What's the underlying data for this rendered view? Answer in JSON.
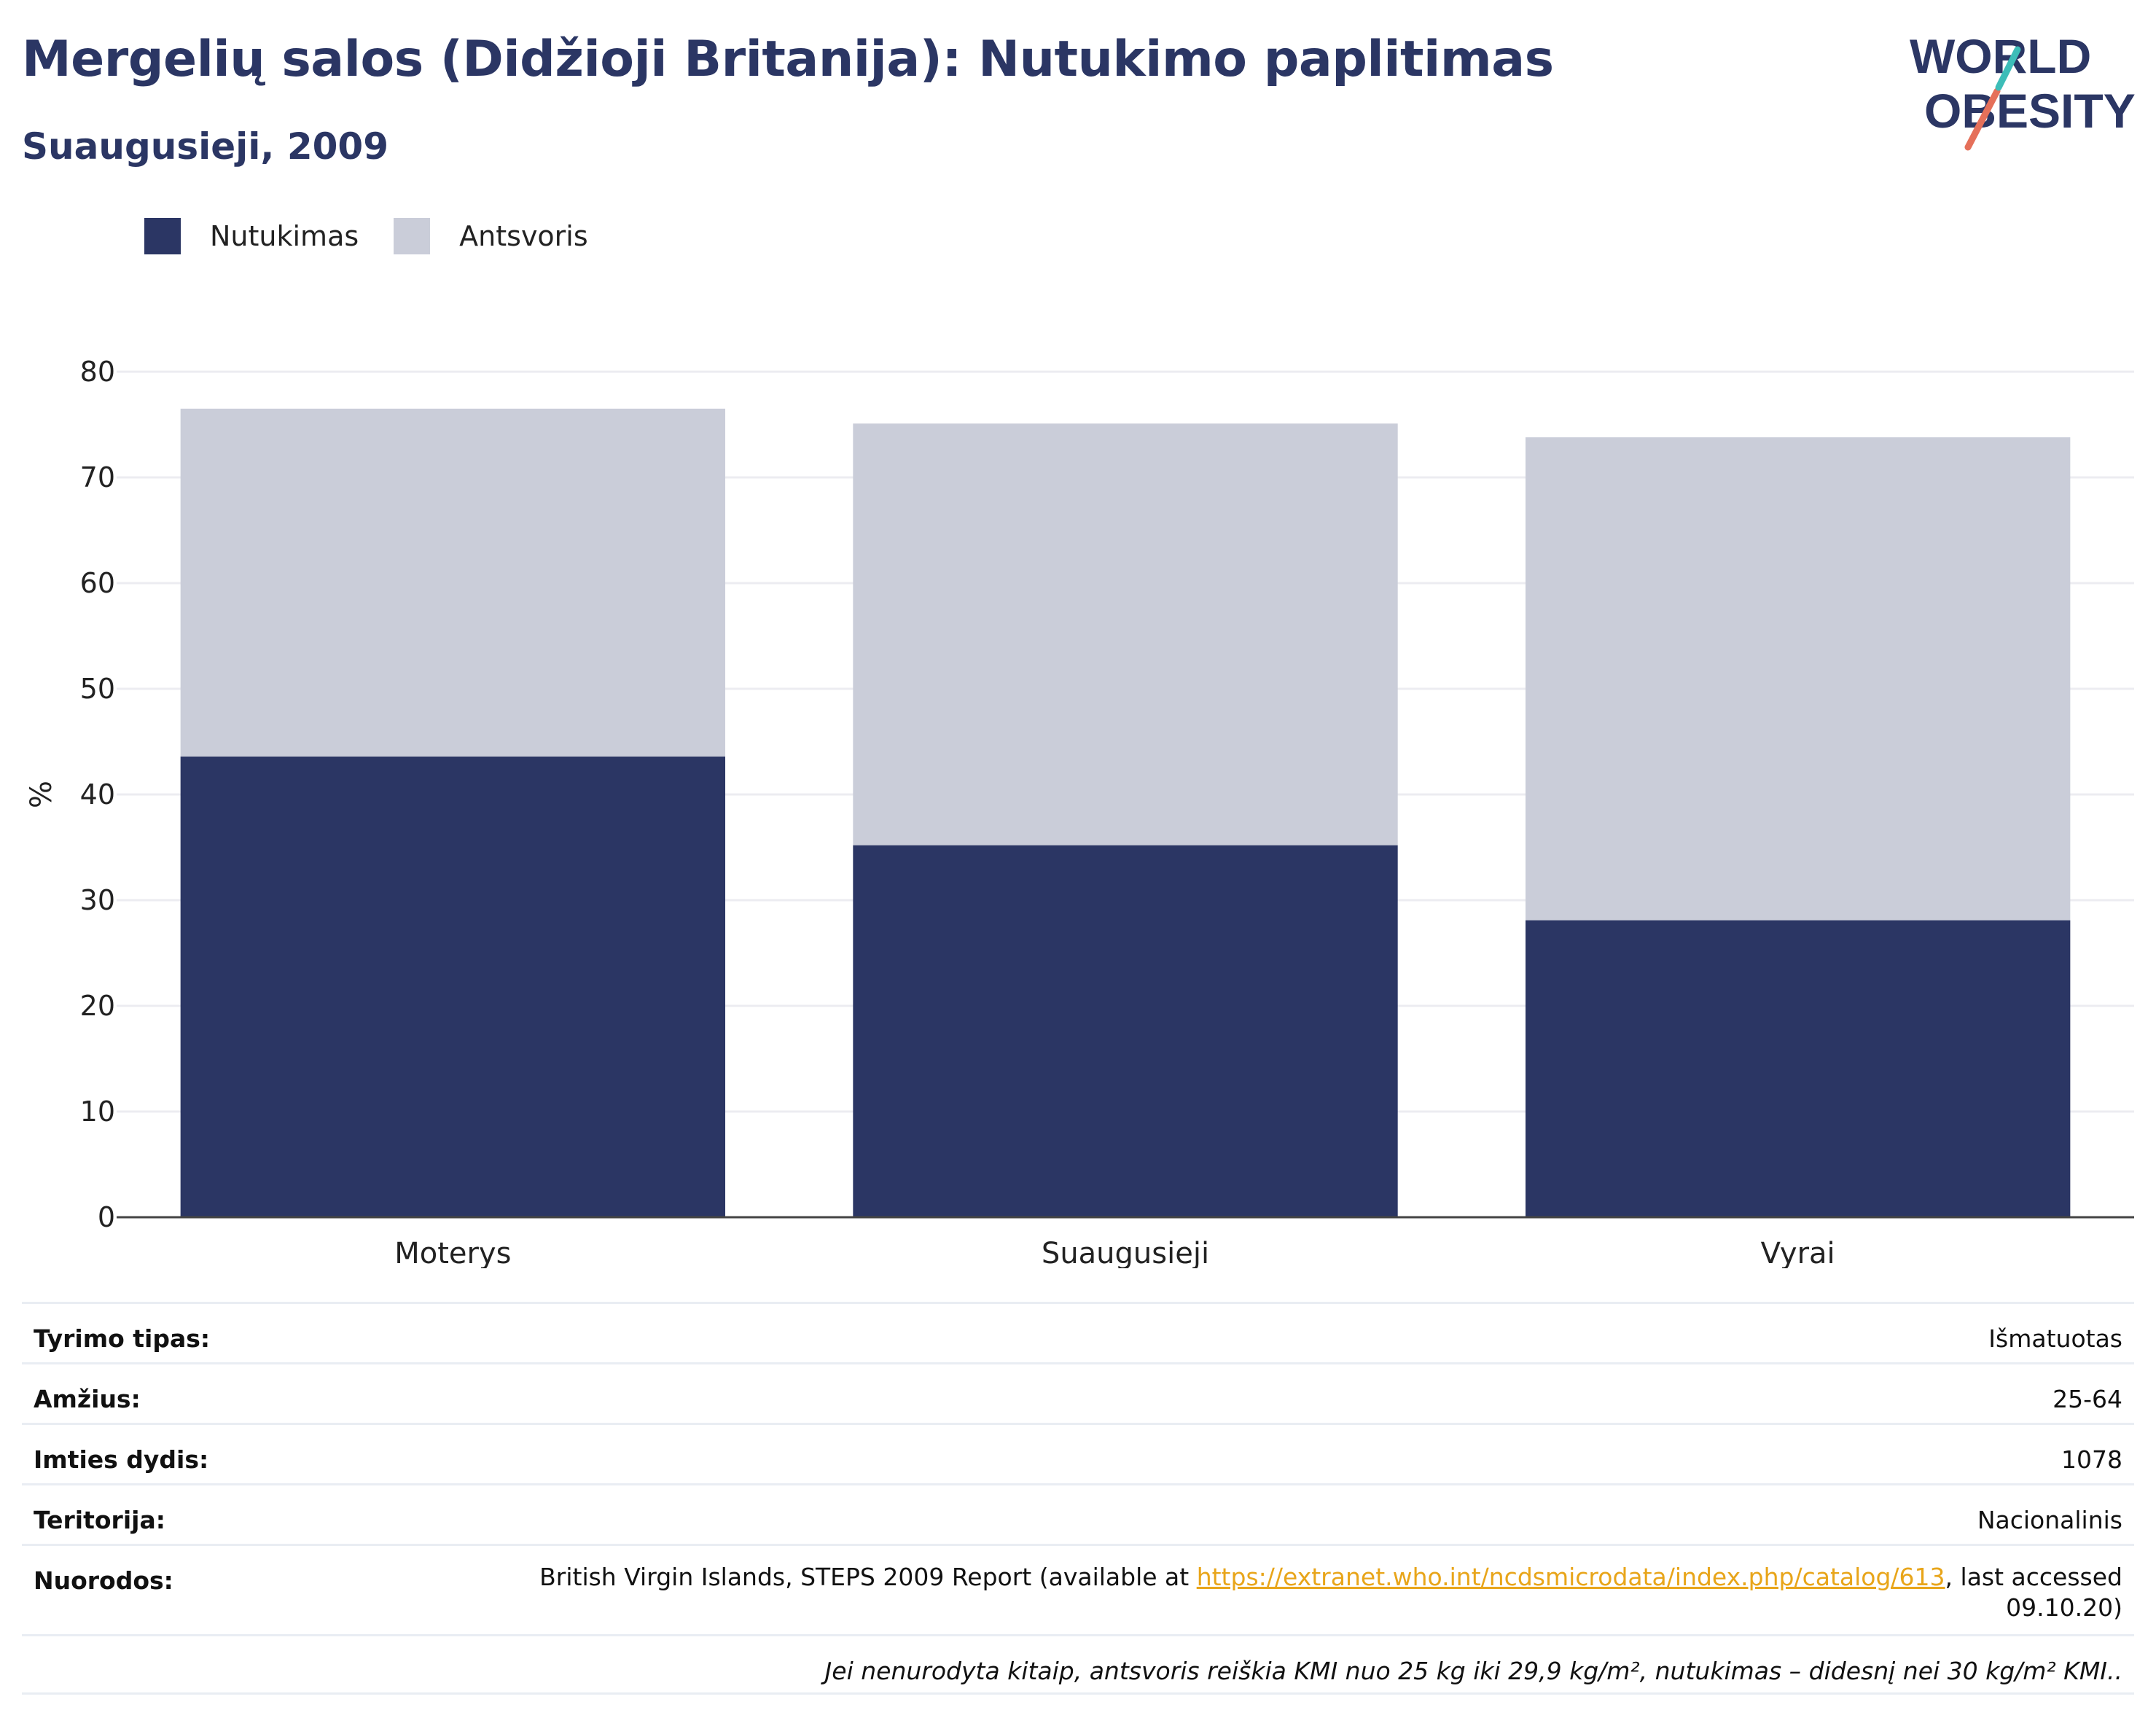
{
  "title": "Mergelių salos (Didžioji Britanija): Nutukimo paplitimas",
  "subtitle": "Suaugusieji, 2009",
  "logo": {
    "line1": "WORLD",
    "line2": "OBESITY"
  },
  "colors": {
    "obesity": "#2b3664",
    "overweight": "#cacdd9",
    "title": "#2b3664",
    "link": "#e8a51a"
  },
  "legend": [
    {
      "label": "Nutukimas",
      "color": "#2b3664"
    },
    {
      "label": "Antsvoris",
      "color": "#cacdd9"
    }
  ],
  "chart_data": {
    "type": "bar",
    "stacked": true,
    "categories": [
      "Moterys",
      "Suaugusieji",
      "Vyrai"
    ],
    "series": [
      {
        "name": "Nutukimas",
        "values": [
          43.6,
          35.2,
          28.1
        ]
      },
      {
        "name": "Antsvoris",
        "values": [
          32.9,
          39.9,
          45.7
        ]
      }
    ],
    "ylabel": "%",
    "ylim": [
      0,
      80
    ],
    "yticks": [
      0,
      10,
      20,
      30,
      40,
      50,
      60,
      70,
      80
    ],
    "grid": true,
    "legend_position": "top-left"
  },
  "info": {
    "rows": [
      {
        "label": "Tyrimo tipas:",
        "value": "Išmatuotas"
      },
      {
        "label": "Amžius:",
        "value": "25-64"
      },
      {
        "label": "Imties dydis:",
        "value": "1078"
      },
      {
        "label": "Teritorija:",
        "value": "Nacionalinis"
      }
    ],
    "references": {
      "label": "Nuorodos:",
      "text_before": "British Virgin Islands, STEPS 2009 Report (available at ",
      "link": "https://extranet.who.int/ncdsmicrodata/index.php/catalog/613",
      "text_after": ", last accessed",
      "date": "09.10.20)"
    },
    "note": "Jei nenurodyta kitaip, antsvoris reiškia KMI nuo 25 kg iki 29,9 kg/m², nutukimas – didesnį nei 30 kg/m² KMI.."
  }
}
